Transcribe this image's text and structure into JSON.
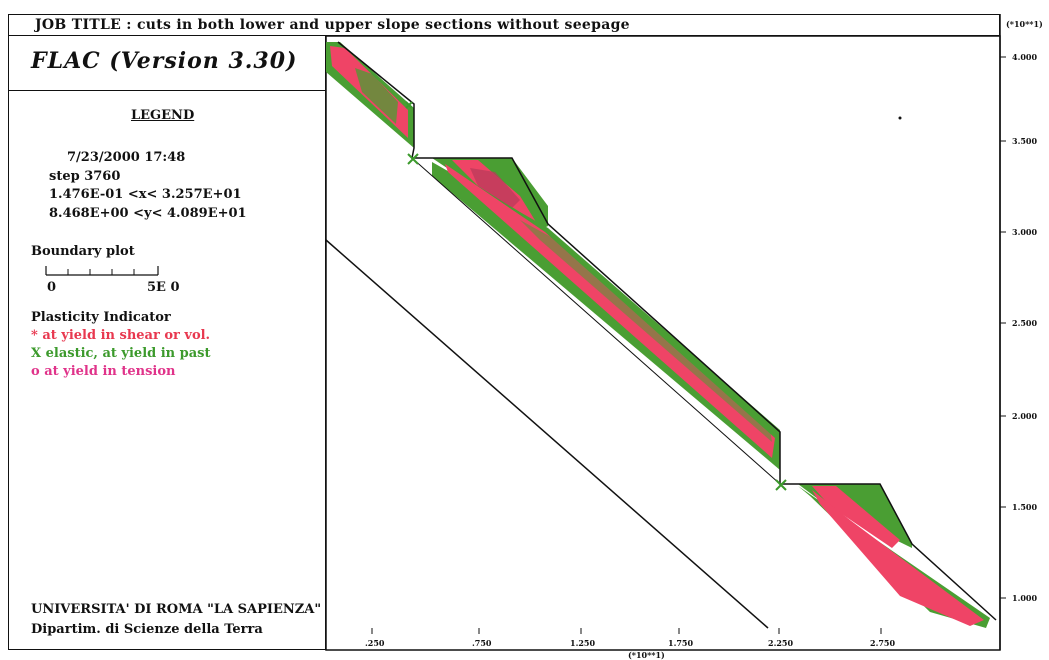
{
  "header": {
    "job_title": "JOB TITLE :  cuts in both lower and upper slope sections without seepage"
  },
  "program": {
    "name": "FLAC (Version 3.30)"
  },
  "legend": {
    "heading": "LEGEND",
    "date": "7/23/2000   17:48",
    "step": "step    3760",
    "x_range": "1.476E-01  <x<   3.257E+01",
    "y_range": "8.468E+00  <y<   4.089E+01",
    "boundary_title": "Boundary plot",
    "scale_start": "0",
    "scale_end": "5E  0"
  },
  "plasticity": {
    "title": "Plasticity Indicator",
    "items": [
      {
        "text": "* at yield in shear or vol.",
        "color": "#e8384f"
      },
      {
        "text": "X elastic, at yield in past",
        "color": "#3c9a2c"
      },
      {
        "text": "o at yield in tension",
        "color": "#e0338a"
      }
    ]
  },
  "institution": {
    "line1": "UNIVERSITA' DI ROMA \"LA SAPIENZA\"",
    "line2": "Dipartim. di Scienze della Terra"
  },
  "axes": {
    "y_multiplier": "(*10**1)",
    "y_ticks": [
      "4.000",
      "3.500",
      "3.000",
      "2.500",
      "2.000",
      "1.500",
      "1.000"
    ],
    "x_multiplier": "(*10**1)",
    "x_ticks": [
      ".250",
      ".750",
      "1.250",
      "1.750",
      "2.250",
      "2.750"
    ]
  },
  "colors": {
    "shear": "#ef4466",
    "elastic": "#4a9e33",
    "tension": "#d63a8a",
    "line": "#111111"
  }
}
